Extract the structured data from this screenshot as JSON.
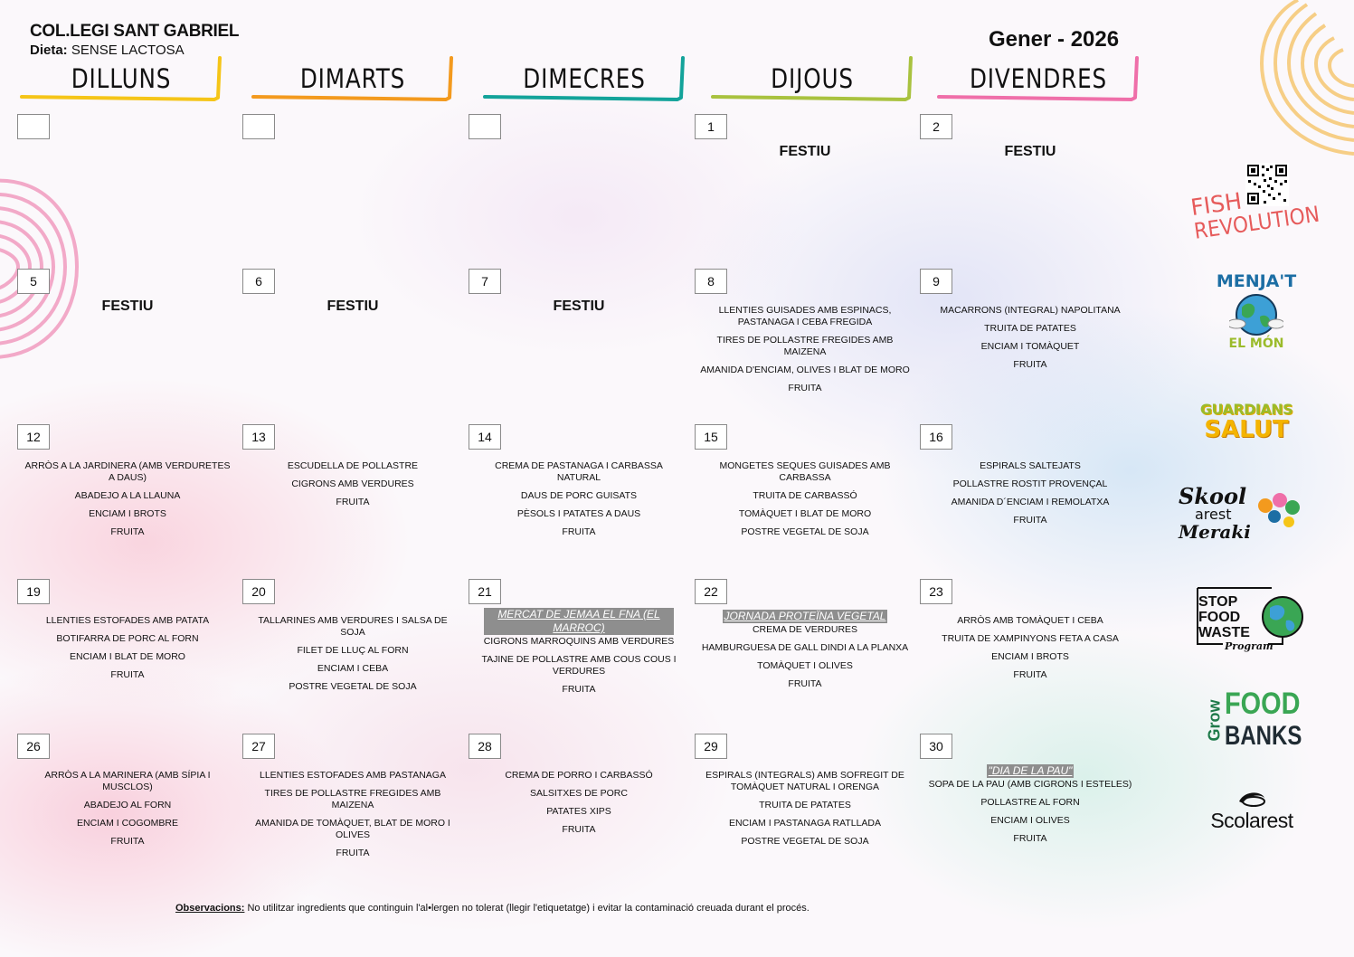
{
  "header": {
    "school": "COL.LEGI SANT GABRIEL",
    "diet_label": "Dieta:",
    "diet_value": "SENSE LACTOSA",
    "month": "Gener - 2026"
  },
  "days": [
    {
      "label": "DILLUNS",
      "color": "#f5c518"
    },
    {
      "label": "DIMARTS",
      "color": "#f39a1e"
    },
    {
      "label": "DIMECRES",
      "color": "#13a39a"
    },
    {
      "label": "DIJOUS",
      "color": "#a9c23f"
    },
    {
      "label": "DIVENDRES",
      "color": "#ef6fa9"
    }
  ],
  "weeks": [
    {
      "cells": [
        {
          "num": "",
          "festiu": "",
          "event": "",
          "items": []
        },
        {
          "num": "",
          "festiu": "",
          "event": "",
          "items": []
        },
        {
          "num": "",
          "festiu": "",
          "event": "",
          "items": []
        },
        {
          "num": "1",
          "festiu": "FESTIU",
          "event": "",
          "items": []
        },
        {
          "num": "2",
          "festiu": "FESTIU",
          "event": "",
          "items": []
        }
      ]
    },
    {
      "cells": [
        {
          "num": "5",
          "festiu": "FESTIU",
          "event": "",
          "items": []
        },
        {
          "num": "6",
          "festiu": "FESTIU",
          "event": "",
          "items": []
        },
        {
          "num": "7",
          "festiu": "FESTIU",
          "event": "",
          "items": []
        },
        {
          "num": "8",
          "festiu": "",
          "event": "",
          "items": [
            "LLENTIES GUISADES AMB ESPINACS, PASTANAGA I CEBA FREGIDA",
            "TIRES DE POLLASTRE FREGIDES AMB MAIZENA",
            "AMANIDA D'ENCIAM, OLIVES I BLAT DE MORO",
            "FRUITA"
          ]
        },
        {
          "num": "9",
          "festiu": "",
          "event": "",
          "items": [
            "MACARRONS (INTEGRAL) NAPOLITANA",
            "TRUITA DE PATATES",
            "ENCIAM I TOMÀQUET",
            "FRUITA"
          ]
        }
      ]
    },
    {
      "cells": [
        {
          "num": "12",
          "festiu": "",
          "event": "",
          "items": [
            "ARRÒS A LA JARDINERA (AMB VERDURETES A DAUS)",
            "ABADEJO A LA LLAUNA",
            "ENCIAM I BROTS",
            "FRUITA"
          ]
        },
        {
          "num": "13",
          "festiu": "",
          "event": "",
          "items": [
            "ESCUDELLA DE POLLASTRE",
            "CIGRONS AMB VERDURES",
            "FRUITA"
          ]
        },
        {
          "num": "14",
          "festiu": "",
          "event": "",
          "items": [
            "CREMA DE PASTANAGA I CARBASSA NATURAL",
            "DAUS DE PORC GUISATS",
            "PÈSOLS I PATATES A DAUS",
            "FRUITA"
          ]
        },
        {
          "num": "15",
          "festiu": "",
          "event": "",
          "items": [
            "MONGETES SEQUES GUISADES AMB CARBASSA",
            "TRUITA DE CARBASSÓ",
            "TOMÀQUET I BLAT DE MORO",
            "POSTRE VEGETAL DE SOJA"
          ]
        },
        {
          "num": "16",
          "festiu": "",
          "event": "",
          "items": [
            "ESPIRALS SALTEJATS",
            "POLLASTRE ROSTIT PROVENÇAL",
            "AMANIDA D´ENCIAM I REMOLATXA",
            "FRUITA"
          ]
        }
      ]
    },
    {
      "cells": [
        {
          "num": "19",
          "festiu": "",
          "event": "",
          "items": [
            "LLENTIES ESTOFADES AMB PATATA",
            "BOTIFARRA DE PORC AL FORN",
            "ENCIAM I BLAT DE MORO",
            "FRUITA"
          ]
        },
        {
          "num": "20",
          "festiu": "",
          "event": "",
          "items": [
            "TALLARINES AMB VERDURES I SALSA DE SOJA",
            "FILET DE LLUÇ AL FORN",
            "ENCIAM I CEBA",
            "POSTRE VEGETAL DE SOJA"
          ]
        },
        {
          "num": "21",
          "festiu": "",
          "event": "MERCAT DE JEMAA EL FNA (EL MARROC)",
          "items": [
            "CIGRONS MARROQUINS AMB VERDURES",
            "TAJINE DE POLLASTRE AMB COUS COUS I VERDURES",
            "FRUITA"
          ]
        },
        {
          "num": "22",
          "festiu": "",
          "event": "JORNADA PROTEÏNA VEGETAL",
          "items": [
            "CREMA DE VERDURES",
            "HAMBURGUESA DE GALL DINDI A LA PLANXA",
            "TOMÀQUET I OLIVES",
            "FRUITA"
          ]
        },
        {
          "num": "23",
          "festiu": "",
          "event": "",
          "items": [
            "ARRÒS AMB TOMÀQUET I CEBA",
            "TRUITA DE XAMPINYONS FETA A CASA",
            "ENCIAM I BROTS",
            "FRUITA"
          ]
        }
      ]
    },
    {
      "cells": [
        {
          "num": "26",
          "festiu": "",
          "event": "",
          "items": [
            "ARRÒS A LA MARINERA (AMB SÍPIA I MUSCLOS)",
            "ABADEJO AL FORN",
            "ENCIAM I COGOMBRE",
            "FRUITA"
          ]
        },
        {
          "num": "27",
          "festiu": "",
          "event": "",
          "items": [
            "LLENTIES ESTOFADES AMB PASTANAGA",
            "TIRES DE POLLASTRE FREGIDES AMB MAIZENA",
            "AMANIDA DE TOMÀQUET, BLAT DE MORO I OLIVES",
            "FRUITA"
          ]
        },
        {
          "num": "28",
          "festiu": "",
          "event": "",
          "items": [
            "CREMA DE PORRO I CARBASSÓ",
            "SALSITXES DE PORC",
            "PATATES XIPS",
            "FRUITA"
          ]
        },
        {
          "num": "29",
          "festiu": "",
          "event": "",
          "items": [
            "ESPIRALS (INTEGRALS) AMB SOFREGIT DE TOMÀQUET NATURAL I ORENGA",
            "TRUITA DE PATATES",
            "ENCIAM I PASTANAGA RATLLADA",
            "POSTRE VEGETAL DE SOJA"
          ]
        },
        {
          "num": "30",
          "festiu": "",
          "event": "\"DIA DE LA PAU\"",
          "items": [
            "SOPA DE LA PAU (AMB CIGRONS I ESTELES)",
            "POLLASTRE AL FORN",
            "ENCIAM I OLIVES",
            "FRUITA"
          ]
        }
      ]
    }
  ],
  "observations": {
    "label": "Observacions:",
    "text": "No utilitzar ingredients que continguin l'al•lergen no tolerat (llegir l'etiquetatge) i evitar la contaminació creuada durant el procés."
  },
  "logos": {
    "fish_1": "FISH",
    "fish_2": "REVOLUTION",
    "menjat_1": "MENJA'T",
    "menjat_2": "EL MÓN",
    "guardians_1": "GUARDIANS",
    "guardians_2": "SALUT",
    "skool_1": "Skool",
    "skool_2": "arest",
    "skool_3": "Meraki",
    "stop_1": "STOP",
    "stop_2": "FOOD",
    "stop_3": "WASTE",
    "stop_4": "Program",
    "grow_1": "Grow",
    "grow_2": "FOOD",
    "grow_3": "BANKS",
    "scolarest": "Scolarest"
  }
}
